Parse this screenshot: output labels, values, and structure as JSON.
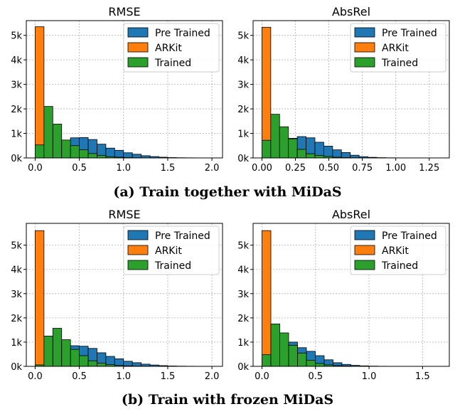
{
  "captions": {
    "a": "(a) Train together with MiDaS",
    "b": "(b) Train with frozen MiDaS"
  },
  "colors": {
    "Pre Trained": "#1f77b4",
    "ARKit": "#ff7f0e",
    "Trained": "#2ca02c"
  },
  "chart_data": [
    {
      "type": "bar",
      "title": "RMSE",
      "legend": "top-right",
      "grid": true,
      "xlim": [
        -0.1,
        2.12
      ],
      "ylim": [
        0,
        5600
      ],
      "xticks": [
        0,
        0.5,
        1,
        1.5,
        2
      ],
      "xtick_labels": [
        "0.0",
        "0.5",
        "1.0",
        "1.5",
        "2.0"
      ],
      "yticks": [
        0,
        1000,
        2000,
        3000,
        4000,
        5000
      ],
      "ytick_labels": [
        "0k",
        "1k",
        "2k",
        "3k",
        "4k",
        "5k"
      ],
      "bin_edges": [
        0.0,
        0.1,
        0.2,
        0.3,
        0.4,
        0.5,
        0.6,
        0.7,
        0.8,
        0.9,
        1.0,
        1.1,
        1.2,
        1.3,
        1.4,
        1.5,
        1.6,
        1.7,
        1.8,
        1.9,
        2.0
      ],
      "series": [
        {
          "name": "Pre Trained",
          "values": [
            20,
            120,
            380,
            650,
            820,
            830,
            750,
            560,
            400,
            310,
            210,
            150,
            90,
            55,
            30,
            15,
            8,
            5,
            3,
            2
          ]
        },
        {
          "name": "ARKit",
          "values": [
            5350,
            0,
            0,
            0,
            0,
            0,
            0,
            0,
            0,
            0,
            0,
            0,
            0,
            0,
            0,
            0,
            0,
            0,
            0,
            0
          ]
        },
        {
          "name": "Trained",
          "values": [
            530,
            2100,
            1380,
            730,
            500,
            330,
            180,
            100,
            50,
            30,
            15,
            8,
            5,
            3,
            2,
            1,
            0,
            0,
            0,
            0
          ]
        }
      ]
    },
    {
      "type": "bar",
      "title": "AbsRel",
      "legend": "top-right",
      "grid": true,
      "xlim": [
        -0.066,
        1.4
      ],
      "ylim": [
        0,
        5600
      ],
      "xticks": [
        0,
        0.25,
        0.5,
        0.75,
        1.0,
        1.25
      ],
      "xtick_labels": [
        "0.00",
        "0.25",
        "0.50",
        "0.75",
        "1.00",
        "1.25"
      ],
      "yticks": [
        0,
        1000,
        2000,
        3000,
        4000,
        5000
      ],
      "ytick_labels": [
        "0k",
        "1k",
        "2k",
        "3k",
        "4k",
        "5k"
      ],
      "bin_edges": [
        0.0,
        0.066,
        0.132,
        0.198,
        0.264,
        0.33,
        0.396,
        0.462,
        0.528,
        0.594,
        0.66,
        0.726,
        0.792,
        0.858,
        0.924,
        0.99,
        1.056,
        1.122,
        1.188,
        1.254,
        1.32
      ],
      "series": [
        {
          "name": "Pre Trained",
          "values": [
            30,
            200,
            520,
            800,
            870,
            820,
            640,
            480,
            330,
            220,
            110,
            50,
            25,
            12,
            6,
            3,
            2,
            1,
            1,
            0
          ]
        },
        {
          "name": "ARKit",
          "values": [
            5330,
            0,
            0,
            0,
            0,
            0,
            0,
            0,
            0,
            0,
            0,
            0,
            0,
            0,
            0,
            0,
            0,
            0,
            0,
            0
          ]
        },
        {
          "name": "Trained",
          "values": [
            720,
            1780,
            1270,
            780,
            350,
            170,
            100,
            60,
            30,
            15,
            8,
            4,
            2,
            1,
            1,
            0,
            0,
            0,
            0,
            0
          ]
        }
      ]
    },
    {
      "type": "bar",
      "title": "RMSE",
      "legend": "top-right",
      "grid": true,
      "xlim": [
        -0.1,
        2.12
      ],
      "ylim": [
        0,
        5900
      ],
      "xticks": [
        0,
        0.5,
        1,
        1.5,
        2
      ],
      "xtick_labels": [
        "0.0",
        "0.5",
        "1.0",
        "1.5",
        "2.0"
      ],
      "yticks": [
        0,
        1000,
        2000,
        3000,
        4000,
        5000
      ],
      "ytick_labels": [
        "0k",
        "1k",
        "2k",
        "3k",
        "4k",
        "5k"
      ],
      "bin_edges": [
        0.0,
        0.1,
        0.2,
        0.3,
        0.4,
        0.5,
        0.6,
        0.7,
        0.8,
        0.9,
        1.0,
        1.1,
        1.2,
        1.3,
        1.4,
        1.5,
        1.6,
        1.7,
        1.8,
        1.9,
        2.0
      ],
      "series": [
        {
          "name": "Pre Trained",
          "values": [
            20,
            120,
            380,
            650,
            850,
            830,
            740,
            560,
            410,
            310,
            210,
            150,
            90,
            55,
            30,
            15,
            8,
            5,
            3,
            2
          ]
        },
        {
          "name": "ARKit",
          "values": [
            5600,
            0,
            0,
            0,
            0,
            0,
            0,
            0,
            0,
            0,
            0,
            0,
            0,
            0,
            0,
            0,
            0,
            0,
            0,
            0
          ]
        },
        {
          "name": "Trained",
          "values": [
            60,
            1250,
            1570,
            1100,
            700,
            440,
            230,
            130,
            70,
            40,
            20,
            10,
            6,
            3,
            2,
            1,
            0,
            0,
            0,
            0
          ]
        }
      ]
    },
    {
      "type": "bar",
      "title": "AbsRel",
      "legend": "top-right",
      "grid": true,
      "xlim": [
        -0.083,
        1.75
      ],
      "ylim": [
        0,
        5900
      ],
      "xticks": [
        0,
        0.5,
        1.0,
        1.5
      ],
      "xtick_labels": [
        "0.0",
        "0.5",
        "1.0",
        "1.5"
      ],
      "yticks": [
        0,
        1000,
        2000,
        3000,
        4000,
        5000
      ],
      "ytick_labels": [
        "0k",
        "1k",
        "2k",
        "3k",
        "4k",
        "5k"
      ],
      "bin_edges": [
        0.0,
        0.083,
        0.166,
        0.249,
        0.332,
        0.415,
        0.498,
        0.581,
        0.664,
        0.747,
        0.83,
        0.913,
        0.996,
        1.079,
        1.162,
        1.245,
        1.328,
        1.411,
        1.494,
        1.577,
        1.66
      ],
      "series": [
        {
          "name": "Pre Trained",
          "values": [
            30,
            250,
            650,
            1000,
            770,
            620,
            440,
            270,
            150,
            80,
            40,
            20,
            10,
            5,
            3,
            2,
            1,
            1,
            0,
            0
          ]
        },
        {
          "name": "ARKit",
          "values": [
            5600,
            0,
            0,
            0,
            0,
            0,
            0,
            0,
            0,
            0,
            0,
            0,
            0,
            0,
            0,
            0,
            0,
            0,
            0,
            0
          ]
        },
        {
          "name": "Trained",
          "values": [
            480,
            1750,
            1380,
            870,
            550,
            250,
            120,
            60,
            30,
            15,
            8,
            4,
            2,
            1,
            1,
            0,
            0,
            0,
            0,
            0
          ]
        }
      ]
    }
  ]
}
